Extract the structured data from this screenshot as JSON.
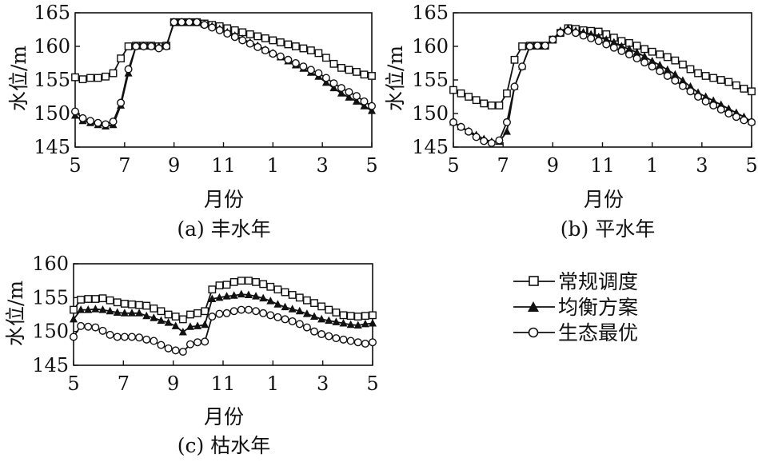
{
  "legend": [
    {
      "name": "常规调度",
      "marker": "square"
    },
    {
      "name": "均衡方案",
      "marker": "triangle"
    },
    {
      "name": "生态最优",
      "marker": "circle"
    }
  ],
  "chart_data": [
    {
      "type": "line",
      "caption": "(a) 丰水年",
      "xlabel": "月份",
      "ylabel": "水位/m",
      "x_ticks": [
        "5",
        "7",
        "9",
        "11",
        "1",
        "3",
        "5"
      ],
      "y_ticks": [
        "145",
        "150",
        "155",
        "160",
        "165"
      ],
      "ylim": [
        145,
        165
      ],
      "xlim": [
        0,
        36
      ],
      "series": [
        {
          "name": "常规调度",
          "marker": "square",
          "values": [
            155.4,
            155.1,
            155.3,
            155.3,
            155.5,
            156.0,
            158.2,
            160.0,
            160.1,
            160.1,
            160.1,
            160.0,
            160.1,
            163.6,
            163.6,
            163.6,
            163.6,
            163.4,
            163.2,
            163.0,
            162.7,
            162.4,
            162.1,
            161.8,
            161.5,
            161.2,
            160.9,
            160.6,
            160.3,
            160.0,
            159.7,
            159.4,
            159.0,
            158.3,
            157.4,
            156.8,
            156.5,
            156.2,
            155.8,
            155.6
          ]
        },
        {
          "name": "均衡方案",
          "marker": "triangle",
          "values": [
            149.7,
            148.9,
            148.6,
            148.3,
            148.1,
            148.3,
            151.2,
            156.0,
            160.0,
            160.1,
            160.0,
            160.0,
            160.1,
            163.6,
            163.6,
            163.6,
            163.6,
            163.3,
            163.0,
            162.6,
            162.1,
            161.6,
            161.1,
            160.6,
            160.1,
            159.5,
            159.0,
            158.4,
            157.8,
            157.2,
            156.7,
            156.1,
            155.5,
            154.6,
            153.8,
            153.0,
            152.4,
            151.8,
            151.1,
            150.4
          ]
        },
        {
          "name": "生态最优",
          "marker": "circle",
          "values": [
            150.3,
            149.3,
            148.9,
            148.6,
            148.4,
            148.8,
            151.6,
            156.6,
            160.0,
            160.0,
            160.0,
            159.7,
            160.0,
            163.6,
            163.6,
            163.6,
            163.6,
            163.2,
            162.8,
            162.4,
            161.9,
            161.4,
            160.9,
            160.4,
            159.9,
            159.4,
            158.9,
            158.5,
            158.0,
            157.5,
            157.0,
            156.5,
            156.0,
            155.3,
            154.5,
            153.8,
            153.2,
            152.6,
            151.8,
            151.1
          ]
        }
      ]
    },
    {
      "type": "line",
      "caption": "(b) 平水年",
      "xlabel": "月份",
      "ylabel": "水位/m",
      "x_ticks": [
        "5",
        "7",
        "9",
        "11",
        "1",
        "3",
        "5"
      ],
      "y_ticks": [
        "145",
        "150",
        "155",
        "160",
        "165"
      ],
      "ylim": [
        145,
        165
      ],
      "xlim": [
        0,
        36
      ],
      "series": [
        {
          "name": "常规调度",
          "marker": "square",
          "values": [
            153.5,
            153.0,
            152.5,
            152.0,
            151.5,
            151.2,
            151.2,
            153.0,
            158.0,
            160.0,
            160.1,
            160.1,
            160.1,
            161.0,
            162.0,
            162.7,
            162.6,
            162.4,
            162.3,
            162.2,
            161.8,
            161.3,
            160.8,
            160.5,
            160.1,
            159.6,
            159.2,
            158.8,
            158.4,
            157.9,
            157.3,
            156.6,
            156.0,
            155.6,
            155.3,
            155.0,
            154.7,
            154.2,
            153.7,
            153.3
          ]
        },
        {
          "name": "均衡方案",
          "marker": "triangle",
          "values": [
            148.7,
            148.0,
            147.4,
            146.8,
            146.2,
            145.8,
            145.8,
            147.3,
            154.0,
            157.0,
            160.0,
            160.1,
            160.1,
            161.0,
            162.3,
            162.7,
            162.3,
            162.1,
            161.8,
            161.4,
            161.0,
            160.6,
            160.0,
            159.6,
            159.1,
            158.5,
            157.8,
            157.2,
            156.5,
            155.8,
            154.9,
            154.0,
            153.1,
            152.5,
            151.9,
            151.3,
            150.7,
            150.1,
            149.5,
            148.8
          ]
        },
        {
          "name": "生态最优",
          "marker": "circle",
          "values": [
            148.7,
            148.0,
            147.3,
            146.5,
            145.9,
            145.6,
            146.0,
            148.7,
            154.0,
            157.0,
            160.0,
            160.1,
            160.1,
            161.0,
            162.0,
            162.3,
            162.0,
            161.6,
            161.2,
            160.8,
            160.3,
            159.8,
            159.3,
            158.8,
            158.2,
            157.6,
            157.0,
            156.3,
            155.6,
            154.9,
            154.1,
            153.3,
            152.5,
            151.8,
            151.2,
            150.6,
            150.0,
            149.5,
            149.0,
            148.7
          ]
        }
      ]
    },
    {
      "type": "line",
      "caption": "(c) 枯水年",
      "xlabel": "月份",
      "ylabel": "水位/m",
      "x_ticks": [
        "5",
        "7",
        "9",
        "11",
        "1",
        "3",
        "5"
      ],
      "y_ticks": [
        "145",
        "150",
        "155",
        "160"
      ],
      "ylim": [
        145,
        160
      ],
      "xlim": [
        0,
        36
      ],
      "series": [
        {
          "name": "常规调度",
          "marker": "square",
          "values": [
            153.2,
            154.7,
            154.8,
            154.8,
            154.9,
            154.6,
            154.3,
            154.1,
            154.0,
            153.9,
            153.8,
            153.4,
            153.0,
            152.5,
            152.2,
            151.8,
            152.5,
            152.7,
            153.0,
            156.2,
            156.8,
            156.9,
            157.3,
            157.5,
            157.5,
            157.3,
            157.0,
            156.6,
            156.2,
            155.8,
            155.4,
            155.0,
            154.6,
            154.2,
            153.7,
            153.2,
            152.8,
            152.4,
            152.3,
            152.2,
            152.3,
            152.4
          ]
        },
        {
          "name": "均衡方案",
          "marker": "triangle",
          "values": [
            151.8,
            153.2,
            153.2,
            153.3,
            153.2,
            153.0,
            152.8,
            152.7,
            152.7,
            152.7,
            152.3,
            152.0,
            151.6,
            151.3,
            150.8,
            149.9,
            150.7,
            150.8,
            151.0,
            154.8,
            155.0,
            155.2,
            155.3,
            155.5,
            155.4,
            155.2,
            154.9,
            154.5,
            154.0,
            153.6,
            153.3,
            153.0,
            152.6,
            152.2,
            151.8,
            151.6,
            151.4,
            151.2,
            151.0,
            150.9,
            151.1,
            151.2
          ]
        },
        {
          "name": "生态最优",
          "marker": "circle",
          "values": [
            149.2,
            150.8,
            150.7,
            150.6,
            150.1,
            149.5,
            149.2,
            149.2,
            149.2,
            149.1,
            148.8,
            148.6,
            148.0,
            147.5,
            147.2,
            147.0,
            148.1,
            148.4,
            148.5,
            152.2,
            152.6,
            152.7,
            153.0,
            153.2,
            153.2,
            153.0,
            152.7,
            152.4,
            152.1,
            151.8,
            151.5,
            151.1,
            150.6,
            150.0,
            149.6,
            149.3,
            149.0,
            148.8,
            148.6,
            148.4,
            148.2,
            148.4
          ]
        }
      ]
    }
  ]
}
